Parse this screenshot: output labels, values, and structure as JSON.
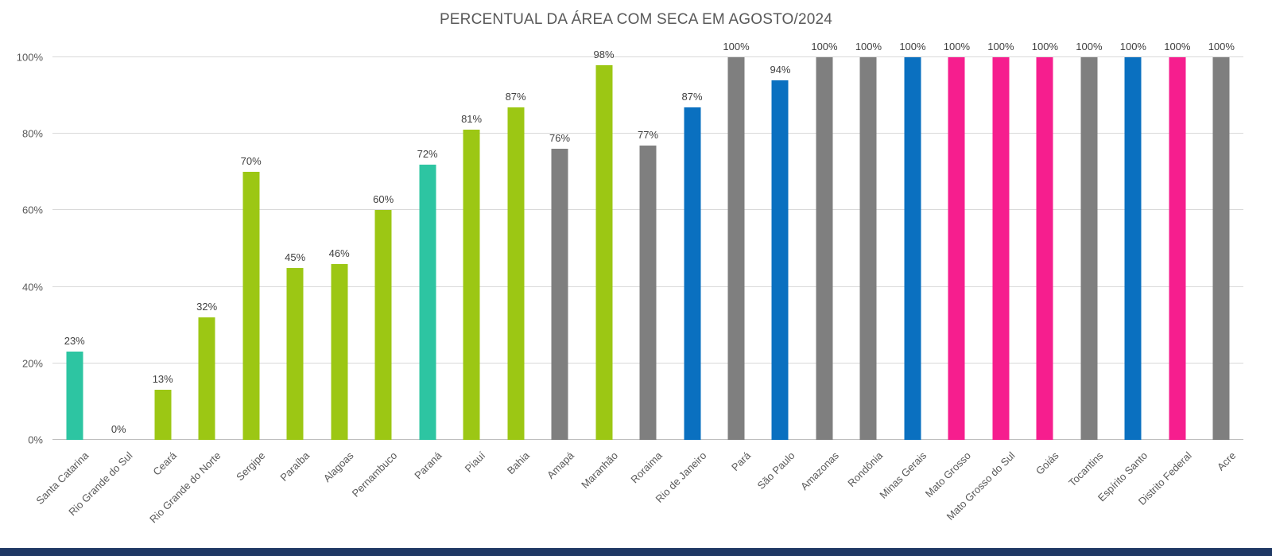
{
  "chart_data": {
    "type": "bar",
    "title": "PERCENTUAL DA ÁREA COM SECA EM AGOSTO/2024",
    "categories": [
      "Santa Catarina",
      "Rio Grande do Sul",
      "Ceará",
      "Rio Grande do Norte",
      "Sergipe",
      "Paraíba",
      "Alagoas",
      "Pernambuco",
      "Paraná",
      "Piauí",
      "Bahia",
      "Amapá",
      "Maranhão",
      "Roraima",
      "Rio de Janeiro",
      "Pará",
      "São Paulo",
      "Amazonas",
      "Rondônia",
      "Minas Gerais",
      "Mato Grosso",
      "Mato Grosso do Sul",
      "Goiás",
      "Tocantins",
      "Espírito Santo",
      "Distrito Federal",
      "Acre"
    ],
    "values": [
      23,
      0,
      13,
      32,
      70,
      45,
      46,
      60,
      72,
      81,
      87,
      76,
      98,
      77,
      87,
      100,
      94,
      100,
      100,
      100,
      100,
      100,
      100,
      100,
      100,
      100,
      100
    ],
    "labels": [
      "23%",
      "0%",
      "13%",
      "32%",
      "70%",
      "45%",
      "46%",
      "60%",
      "72%",
      "81%",
      "87%",
      "76%",
      "98%",
      "77%",
      "87%",
      "100%",
      "94%",
      "100%",
      "100%",
      "100%",
      "100%",
      "100%",
      "100%",
      "100%",
      "100%",
      "100%",
      "100%"
    ],
    "bar_colors": [
      "teal",
      "none",
      "green",
      "green",
      "green",
      "green",
      "green",
      "green",
      "teal",
      "green",
      "green",
      "gray",
      "green",
      "gray",
      "blue",
      "gray",
      "blue",
      "gray",
      "gray",
      "blue",
      "pink",
      "pink",
      "pink",
      "gray",
      "blue",
      "pink",
      "gray"
    ],
    "palette": {
      "teal": "#2DC5A2",
      "green": "#9CC714",
      "gray": "#7F7F7F",
      "blue": "#0A70C0",
      "pink": "#F61E8E",
      "none": "transparent"
    },
    "xlabel": "",
    "ylabel": "",
    "ylim": [
      0,
      100
    ],
    "yticks": [
      {
        "value": 0,
        "label": "0%"
      },
      {
        "value": 20,
        "label": "20%"
      },
      {
        "value": 40,
        "label": "40%"
      },
      {
        "value": 60,
        "label": "60%"
      },
      {
        "value": 80,
        "label": "80%"
      },
      {
        "value": 100,
        "label": "100%"
      }
    ],
    "grid": true,
    "legend": "none"
  },
  "footer": {
    "color": "#1F3864"
  }
}
